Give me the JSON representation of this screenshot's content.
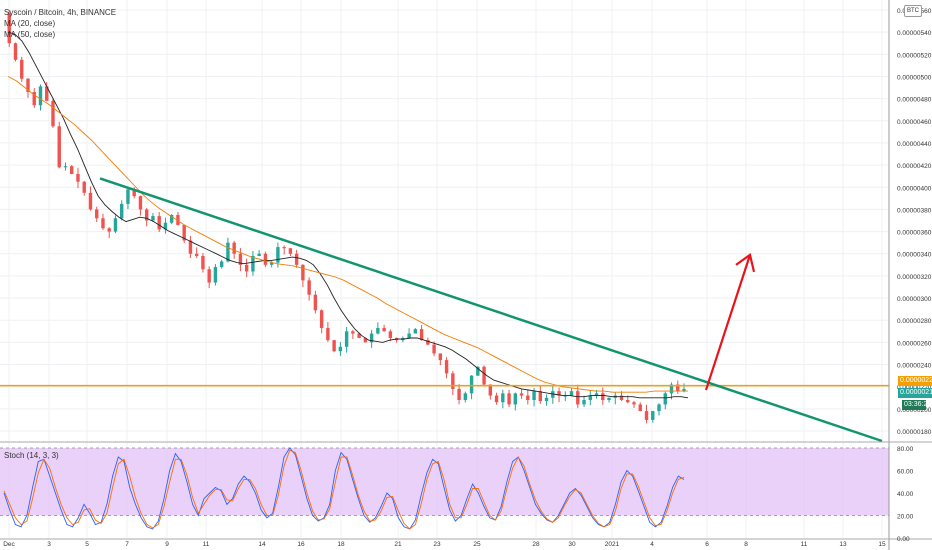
{
  "header": {
    "symbol_line": "Syscoin / Bitcoin, 4h, BINANCE",
    "ma20_label": "MA (20, close)",
    "ma50_label": "MA (50, close)",
    "stoch_label": "Stoch (14, 3, 3)",
    "unit_badge": "BTC"
  },
  "price_tags": {
    "resistance": "0.00000221",
    "last": "0.00000218",
    "countdown": "03:36:20"
  },
  "colors": {
    "up": "#26a69a",
    "down": "#ef5350",
    "ma20": "#222222",
    "ma50": "#f57c00",
    "trendline": "#12946e",
    "arrow": "#e8141b",
    "hline": "#f5a000",
    "stoch_k": "#2962ff",
    "stoch_d": "#ff6d00",
    "stoch_band": "#e1bef7"
  },
  "chart_data": [
    {
      "type": "candlestick",
      "title": "Syscoin / Bitcoin, 4h, BINANCE",
      "y_axis_ticks": [
        "0.00000560",
        "0.00000540",
        "0.00000520",
        "0.00000500",
        "0.00000480",
        "0.00000460",
        "0.00000440",
        "0.00000420",
        "0.00000400",
        "0.00000380",
        "0.00000360",
        "0.00000340",
        "0.00000320",
        "0.00000300",
        "0.00000280",
        "0.00000260",
        "0.00000240",
        "0.00000220",
        "0.00000200",
        "0.00000180"
      ],
      "x_axis_ticks": [
        "Dec",
        "3",
        "5",
        "7",
        "9",
        "11",
        "14",
        "16",
        "18",
        "21",
        "23",
        "25",
        "28",
        "30",
        "2021",
        "4",
        "6",
        "8",
        "11",
        "13",
        "15"
      ],
      "ylim": [
        1.71e-06,
        5.69e-06
      ],
      "close_series": [
        557,
        530,
        515,
        498,
        486,
        474,
        491,
        478,
        455,
        418,
        419,
        412,
        405,
        395,
        380,
        372,
        363,
        360,
        372,
        385,
        398,
        392,
        380,
        370,
        374,
        362,
        368,
        375,
        366,
        352,
        340,
        338,
        326,
        314,
        328,
        333,
        350,
        340,
        330,
        324,
        338,
        340,
        330,
        332,
        346,
        345,
        340,
        330,
        316,
        303,
        289,
        273,
        262,
        252,
        256,
        270,
        268,
        264,
        260,
        268,
        273,
        270,
        264,
        262,
        264,
        268,
        272,
        262,
        258,
        250,
        244,
        232,
        218,
        208,
        214,
        230,
        238,
        222,
        212,
        206,
        214,
        204,
        214,
        212,
        208,
        216,
        207,
        210,
        216,
        212,
        212,
        216,
        204,
        208,
        212,
        214,
        208,
        210,
        212,
        208,
        206,
        204,
        198,
        190,
        198,
        204,
        214,
        222,
        216,
        218
      ],
      "ma20_series": [
        540,
        538,
        532,
        522,
        510,
        498,
        486,
        474,
        462,
        448,
        435,
        420,
        405,
        392,
        384,
        378,
        373,
        369,
        371,
        373,
        372,
        369,
        365,
        361,
        358,
        355,
        352,
        349,
        346,
        343,
        340,
        337,
        334,
        332,
        331,
        332,
        333,
        334,
        334,
        335,
        336,
        337,
        336,
        334,
        330,
        322,
        312,
        300,
        289,
        280,
        272,
        266,
        262,
        261,
        260,
        262,
        263,
        263,
        264,
        264,
        262,
        260,
        258,
        256,
        253,
        249,
        245,
        240,
        235,
        230,
        226,
        224,
        222,
        220,
        218,
        217,
        216,
        215,
        214,
        213,
        212,
        212,
        211,
        211,
        212,
        212,
        212,
        211,
        211,
        211,
        211,
        210,
        210,
        210,
        210,
        210,
        211,
        211,
        210
      ],
      "ma50_series": [
        500,
        496,
        490,
        484,
        479,
        474,
        468,
        462,
        456,
        449,
        442,
        434,
        426,
        418,
        410,
        402,
        394,
        387,
        381,
        376,
        371,
        366,
        362,
        358,
        354,
        350,
        346,
        343,
        340,
        337,
        335,
        333,
        331,
        330,
        329,
        327,
        325,
        323,
        321,
        319,
        316,
        312,
        308,
        304,
        300,
        295,
        291,
        287,
        283,
        279,
        275,
        271,
        267,
        264,
        261,
        258,
        255,
        251,
        247,
        243,
        239,
        235,
        231,
        227,
        224,
        222,
        220,
        219,
        218,
        217,
        216,
        216,
        215,
        215,
        215,
        215,
        215,
        216,
        216,
        216,
        216,
        216
      ],
      "trendline": {
        "from": {
          "x": "Dec 6",
          "y": 4.08e-06
        },
        "to": {
          "x": "Jan 15",
          "y": 1.71e-06
        }
      },
      "horizontal_level": 2.21e-06,
      "projection_arrow": {
        "from": {
          "x": "Jan 5",
          "y": 2.17e-06
        },
        "to": {
          "x": "Jan 7",
          "y": 3.39e-06
        }
      }
    },
    {
      "type": "line",
      "title": "Stoch (14, 3, 3)",
      "y_axis_ticks": [
        "80.00",
        "60.00",
        "40.00",
        "20.00",
        "0.00"
      ],
      "ylim": [
        0,
        80
      ],
      "band": [
        20,
        80
      ],
      "series": [
        {
          "name": "K",
          "values": [
            40,
            25,
            12,
            10,
            20,
            45,
            68,
            70,
            55,
            40,
            25,
            12,
            10,
            18,
            30,
            22,
            12,
            14,
            30,
            55,
            72,
            68,
            45,
            30,
            18,
            10,
            8,
            15,
            35,
            60,
            75,
            68,
            50,
            30,
            20,
            35,
            40,
            45,
            42,
            30,
            35,
            48,
            55,
            50,
            40,
            25,
            18,
            22,
            45,
            72,
            80,
            74,
            55,
            35,
            20,
            15,
            18,
            30,
            60,
            76,
            70,
            52,
            35,
            20,
            14,
            18,
            28,
            40,
            35,
            18,
            10,
            8,
            16,
            38,
            58,
            70,
            66,
            45,
            25,
            15,
            20,
            35,
            48,
            40,
            28,
            18,
            16,
            28,
            50,
            68,
            72,
            60,
            45,
            30,
            22,
            16,
            14,
            20,
            30,
            40,
            44,
            38,
            28,
            18,
            12,
            10,
            14,
            30,
            50,
            60,
            55,
            42,
            28,
            14,
            10,
            14,
            28,
            45,
            55,
            52
          ]
        },
        {
          "name": "D",
          "values": [
            42,
            30,
            18,
            12,
            15,
            35,
            58,
            70,
            62,
            45,
            30,
            18,
            12,
            14,
            25,
            26,
            16,
            13,
            22,
            45,
            66,
            70,
            55,
            36,
            22,
            12,
            9,
            12,
            28,
            50,
            70,
            70,
            56,
            36,
            22,
            30,
            38,
            43,
            43,
            34,
            33,
            44,
            52,
            52,
            44,
            30,
            20,
            20,
            38,
            64,
            78,
            76,
            60,
            40,
            24,
            16,
            17,
            26,
            50,
            72,
            72,
            56,
            38,
            24,
            15,
            16,
            24,
            36,
            37,
            24,
            13,
            8,
            12,
            30,
            52,
            66,
            68,
            52,
            30,
            18,
            18,
            30,
            44,
            44,
            32,
            20,
            16,
            24,
            44,
            62,
            72,
            64,
            48,
            34,
            24,
            17,
            14,
            18,
            28,
            37,
            43,
            40,
            30,
            20,
            13,
            10,
            12,
            24,
            44,
            57,
            57,
            46,
            32,
            18,
            11,
            12,
            24,
            40,
            52,
            54
          ]
        }
      ]
    }
  ]
}
